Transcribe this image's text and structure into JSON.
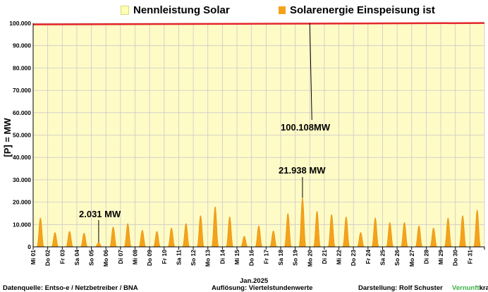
{
  "legend": {
    "items": [
      {
        "label": "Nennleistung Solar",
        "color": "#ffffb3"
      },
      {
        "label": "Solarenergie Einspeisung ist",
        "color": "#f5a21b"
      }
    ]
  },
  "colors": {
    "plot_background": "#fffbc6",
    "area": "#f5a21b",
    "capacity_line": "#e3262b",
    "grid": "#c9c9c9"
  },
  "chart_data": {
    "type": "area",
    "ylabel": "[P] = MW",
    "xlabel": "Jan.2025",
    "ylim": [
      0,
      100000
    ],
    "yticks": [
      "0",
      "10.000",
      "20.000",
      "30.000",
      "40.000",
      "50.000",
      "60.000",
      "70.000",
      "80.000",
      "90.000",
      "100.000"
    ],
    "ytick_values": [
      0,
      10000,
      20000,
      30000,
      40000,
      50000,
      60000,
      70000,
      80000,
      90000,
      100000
    ],
    "grid": true,
    "legend_position": "top",
    "categories": [
      "Mi 01",
      "Do 02",
      "Fr 03",
      "Sa 04",
      "So 05",
      "Mo 06",
      "Di 07",
      "Mi 08",
      "Do 09",
      "Fr 10",
      "Sa 11",
      "So 12",
      "Mo 13",
      "Di 14",
      "Mi 15",
      "Do 16",
      "Fr 17",
      "Sa 18",
      "So 19",
      "Mo 20",
      "Di 21",
      "Mi 22",
      "Do 23",
      "Fr 24",
      "Sa 25",
      "So 26",
      "Mo 27",
      "Di 28",
      "Mi 29",
      "Do 30",
      "Fr 31"
    ],
    "series": [
      {
        "name": "Solarenergie Einspeisung ist",
        "type": "area",
        "daily_peaks": [
          13000,
          6500,
          7000,
          6200,
          2031,
          9000,
          10500,
          7500,
          7000,
          8500,
          10500,
          14000,
          18000,
          13500,
          4800,
          9500,
          7200,
          15000,
          21938,
          16000,
          14500,
          13500,
          6500,
          13000,
          11000,
          11000,
          9500,
          8500,
          13000,
          14000,
          16500
        ]
      },
      {
        "name": "Nennleistung Solar",
        "type": "line",
        "start_value": 99500,
        "end_value": 100108
      }
    ],
    "annotations": [
      {
        "text": "100.108MW",
        "day_index": 19,
        "value": 100108
      },
      {
        "text": "21.938 MW",
        "day_index": 18,
        "value": 21938
      },
      {
        "text": "2.031 MW",
        "day_index": 4,
        "value": 2031
      }
    ]
  },
  "footer": {
    "source": "Datenquelle:  Entso-e  / Netzbetreiber / BNA",
    "resolution": "Auflösung: Viertelstundenwerte",
    "author": "Darstellung:  Rolf Schuster",
    "brand_green": "Vernunft",
    "brand_black": "kraft"
  }
}
